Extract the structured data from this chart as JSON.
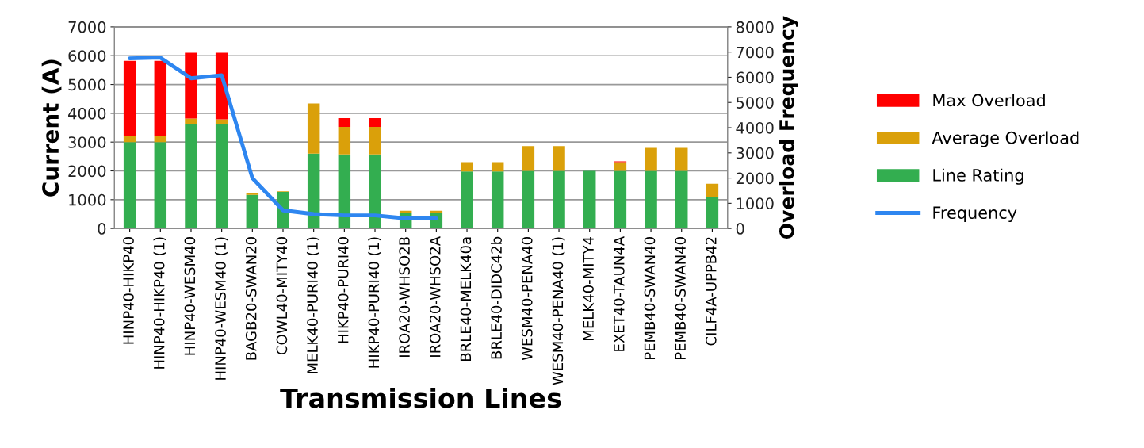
{
  "chart_data": {
    "type": "bar",
    "stacked": true,
    "xlabel": "Transmission Lines",
    "ylabel": "Current (A)",
    "y2label": "Overload Frequency",
    "categories": [
      "HINP40-HIKP40",
      "HINP40-HIKP40 (1)",
      "HINP40-WESM40",
      "HINP40-WESM40 (1)",
      "BAGB20-SWAN20",
      "COWL40-MITY40",
      "MELK40-PURI40 (1)",
      "HIKP40-PURI40",
      "HIKP40-PURI40 (1)",
      "IROA20-WHSO2B",
      "IROA20-WHSO2A",
      "BRLE40-MELK40a",
      "BRLE40-DIDC42b",
      "WESM40-PENA40",
      "WESM40-PENA40 (1)",
      "MELK40-MITY4",
      "EXET40-TAUN4A",
      "PEMB40-SWAN40",
      "PEMB40-SWAN40",
      "CILF4A-UPPB42"
    ],
    "series": [
      {
        "name": "Line Rating",
        "color": "#33ae50",
        "values": [
          3000,
          3000,
          3640,
          3640,
          1170,
          1270,
          2600,
          2570,
          2570,
          540,
          540,
          1980,
          1980,
          2000,
          2000,
          2000,
          2000,
          2000,
          2000,
          1090
        ]
      },
      {
        "name": "Average Overload",
        "color": "#daa00a",
        "values": [
          220,
          220,
          180,
          150,
          50,
          20,
          1740,
          960,
          960,
          80,
          80,
          320,
          320,
          860,
          860,
          0,
          300,
          800,
          800,
          460
        ]
      },
      {
        "name": "Max Overload",
        "color": "#ff0000",
        "values": [
          2600,
          2600,
          2280,
          2310,
          20,
          0,
          0,
          300,
          300,
          0,
          0,
          0,
          0,
          0,
          0,
          0,
          30,
          0,
          0,
          0
        ]
      },
      {
        "name": "Frequency",
        "type": "line",
        "axis": "y2",
        "color": "#2e86f0",
        "values": [
          6750,
          6780,
          5960,
          6080,
          2000,
          720,
          570,
          520,
          520,
          400,
          400,
          null,
          null,
          null,
          null,
          null,
          null,
          null,
          null,
          null
        ]
      }
    ],
    "ylim": [
      0,
      7000
    ],
    "yticks": [
      0,
      1000,
      2000,
      3000,
      4000,
      5000,
      6000,
      7000
    ],
    "y2lim": [
      0,
      8000
    ],
    "y2ticks": [
      0,
      1000,
      2000,
      3000,
      4000,
      5000,
      6000,
      7000,
      8000
    ],
    "grid": "y",
    "legend": "right"
  }
}
